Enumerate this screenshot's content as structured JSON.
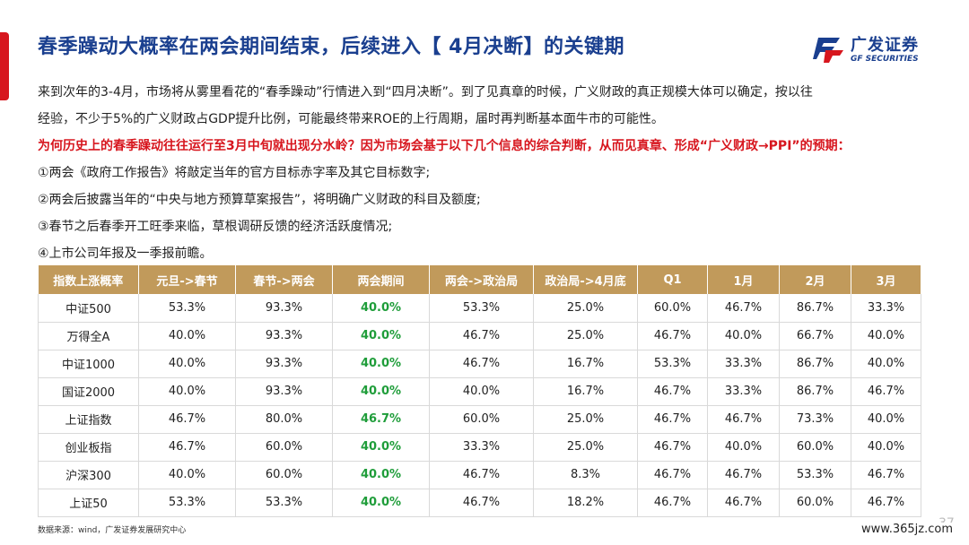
{
  "title": "春季躁动大概率在两会期间结束，后续进入【 4月决断】的关键期",
  "logo": {
    "cn": "广发证券",
    "en": "GF SECURITIES"
  },
  "paragraphs": {
    "p1_line1": "来到次年的3-4月，市场将从雾里看花的“春季躁动”行情进入到“四月决断”。到了见真章的时候，广义财政的真正规模大体可以确定，按以往",
    "p1_line2": "经验，不少于5%的广义财政占GDP提升比例，可能最终带来ROE的上行周期，届时再判断基本面牛市的可能性。",
    "question": "为何历史上的春季躁动往往运行至3月中旬就出现分水岭？因为市场会基于以下几个信息的综合判断，从而见真章、形成“广义财政→PPI”的预期：",
    "items": [
      "①两会《政府工作报告》将敲定当年的官方目标赤字率及其它目标数字;",
      "②两会后披露当年的“中央与地方预算草案报告”，将明确广义财政的科目及额度;",
      "③春节之后春季开工旺季来临，草根调研反馈的经济活跃度情况;",
      "④上市公司年报及一季报前瞻。"
    ]
  },
  "table": {
    "headers": [
      "指数上涨概率",
      "元旦->春节",
      "春节->两会",
      "两会期间",
      "两会->政治局",
      "政治局->4月底",
      "Q1",
      "1月",
      "2月",
      "3月"
    ],
    "rows": [
      [
        "中证500",
        "53.3%",
        "93.3%",
        "40.0%",
        "53.3%",
        "25.0%",
        "60.0%",
        "46.7%",
        "86.7%",
        "33.3%"
      ],
      [
        "万得全A",
        "40.0%",
        "93.3%",
        "40.0%",
        "46.7%",
        "25.0%",
        "46.7%",
        "40.0%",
        "66.7%",
        "40.0%"
      ],
      [
        "中证1000",
        "40.0%",
        "93.3%",
        "40.0%",
        "46.7%",
        "16.7%",
        "53.3%",
        "33.3%",
        "86.7%",
        "40.0%"
      ],
      [
        "国证2000",
        "40.0%",
        "93.3%",
        "40.0%",
        "40.0%",
        "16.7%",
        "46.7%",
        "33.3%",
        "86.7%",
        "46.7%"
      ],
      [
        "上证指数",
        "46.7%",
        "80.0%",
        "46.7%",
        "60.0%",
        "25.0%",
        "46.7%",
        "46.7%",
        "73.3%",
        "40.0%"
      ],
      [
        "创业板指",
        "46.7%",
        "60.0%",
        "40.0%",
        "33.3%",
        "25.0%",
        "46.7%",
        "40.0%",
        "60.0%",
        "40.0%"
      ],
      [
        "沪深300",
        "40.0%",
        "60.0%",
        "40.0%",
        "46.7%",
        "8.3%",
        "46.7%",
        "46.7%",
        "53.3%",
        "46.7%"
      ],
      [
        "上证50",
        "53.3%",
        "53.3%",
        "40.0%",
        "46.7%",
        "18.2%",
        "46.7%",
        "46.7%",
        "60.0%",
        "46.7%"
      ]
    ]
  },
  "source": "数据来源：wind，广发证券发展研究中心",
  "page_number": "37",
  "watermark": "www.365jz.com",
  "colors": {
    "title": "#1a3f8f",
    "accent": "#d7161e",
    "header_bg": "#c19a5b",
    "highlight": "#1f9d3a"
  }
}
